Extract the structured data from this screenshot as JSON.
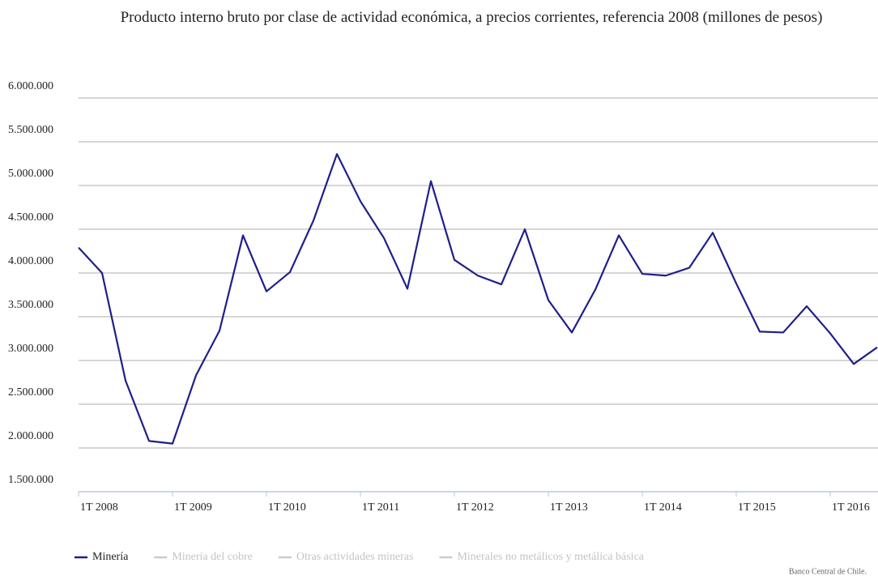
{
  "chart_data": {
    "type": "line",
    "title": "Producto interno bruto por clase de actividad económica, a precios corrientes, referencia 2008 (millones de pesos)",
    "categories": [
      "1T 2008",
      null,
      null,
      null,
      "1T 2009",
      null,
      null,
      null,
      "1T 2010",
      null,
      null,
      null,
      "1T 2011",
      null,
      null,
      null,
      "1T 2012",
      null,
      null,
      null,
      "1T 2013",
      null,
      null,
      null,
      "1T 2014",
      null,
      null,
      null,
      "1T 2015",
      null,
      null,
      null,
      "1T 2016",
      null,
      null
    ],
    "series": [
      {
        "name": "Minería",
        "color": "#1f1f8a",
        "values": [
          4290000,
          4000000,
          2770000,
          2080000,
          2050000,
          2830000,
          3340000,
          4430000,
          3790000,
          4010000,
          4600000,
          5360000,
          4820000,
          4400000,
          3820000,
          5050000,
          4150000,
          3970000,
          3870000,
          4500000,
          3690000,
          3320000,
          3810000,
          4430000,
          3990000,
          3970000,
          4060000,
          4460000,
          3880000,
          3330000,
          3320000,
          3620000,
          3310000,
          2960000,
          3150000
        ]
      }
    ],
    "hidden_series": [
      {
        "name": "Minería del cobre",
        "color": "#cccccc"
      },
      {
        "name": "Otras actividades mineras",
        "color": "#cccccc"
      },
      {
        "name": "Minerales no metálicos y metálica básica",
        "color": "#cccccc"
      }
    ],
    "ylim": [
      1500000,
      6000000
    ],
    "yticks": [
      {
        "value": 1500000,
        "label": "1.500.000"
      },
      {
        "value": 2000000,
        "label": "2.000.000"
      },
      {
        "value": 2500000,
        "label": "2.500.000"
      },
      {
        "value": 3000000,
        "label": "3.000.000"
      },
      {
        "value": 3500000,
        "label": "3.500.000"
      },
      {
        "value": 4000000,
        "label": "4.000.000"
      },
      {
        "value": 4500000,
        "label": "4.500.000"
      },
      {
        "value": 5000000,
        "label": "5.000.000"
      },
      {
        "value": 5500000,
        "label": "5.500.000"
      },
      {
        "value": 6000000,
        "label": "6.000.000"
      }
    ],
    "grid": true,
    "source": "Banco Central de Chile."
  }
}
